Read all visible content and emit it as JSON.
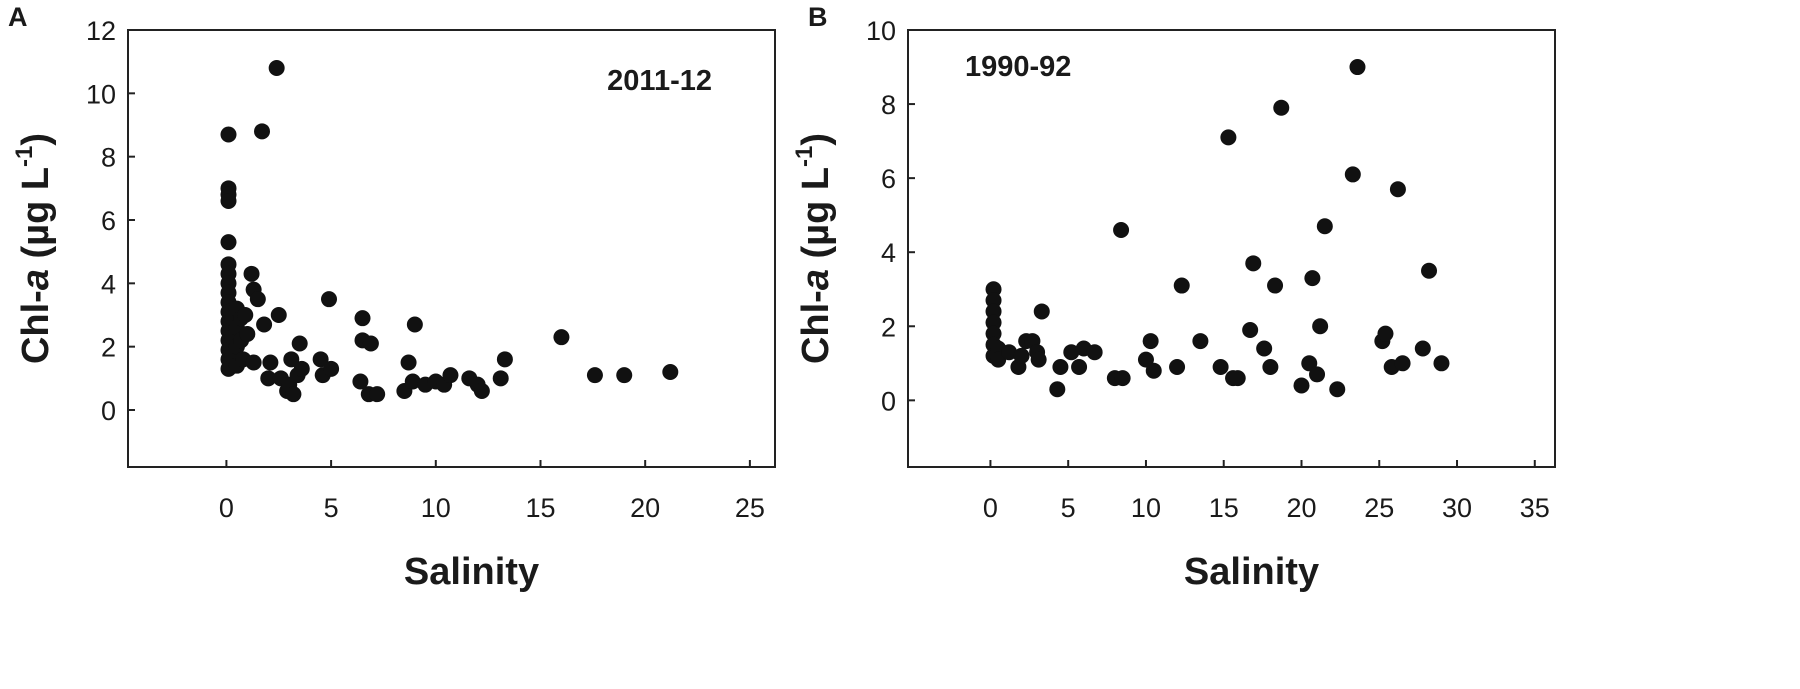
{
  "chart_data": [
    {
      "type": "scatter",
      "panel_label": "A",
      "annotation": "2011-12",
      "x_label": "Salinity",
      "y_label": {
        "prefix": "Chl-",
        "italic": "a",
        "unit": " (µg L",
        "exponent": "-1",
        "suffix": ")"
      },
      "color": "#111111",
      "xlim": [
        -4.7,
        26.2
      ],
      "xticks": [
        0,
        5,
        10,
        15,
        20,
        25
      ],
      "ylim": [
        -1.8,
        12
      ],
      "yticks": [
        0,
        2,
        4,
        6,
        8,
        10,
        12
      ],
      "x": [
        0.1,
        0.1,
        0.1,
        0.1,
        0.1,
        0.1,
        0.1,
        0.1,
        0.1,
        0.1,
        0.1,
        0.1,
        0.1,
        0.1,
        0.1,
        0.1,
        0.1,
        0.3,
        0.3,
        0.3,
        0.5,
        0.5,
        0.5,
        0.5,
        0.7,
        0.7,
        0.8,
        0.9,
        1.0,
        1.2,
        1.3,
        1.5,
        1.3,
        1.7,
        1.8,
        2.0,
        2.1,
        2.4,
        2.5,
        2.6,
        2.9,
        3.0,
        3.1,
        3.2,
        3.4,
        3.5,
        3.6,
        4.5,
        4.6,
        4.9,
        5.0,
        6.4,
        6.5,
        6.5,
        6.8,
        6.9,
        7.2,
        8.5,
        8.7,
        8.9,
        9.0,
        9.5,
        10.0,
        10.4,
        10.7,
        11.6,
        12.0,
        12.2,
        13.1,
        13.3,
        16.0,
        17.6,
        19.0,
        21.2
      ],
      "y": [
        8.7,
        7.0,
        6.8,
        6.6,
        5.3,
        4.6,
        4.3,
        4.0,
        3.7,
        3.4,
        3.1,
        2.8,
        2.5,
        2.2,
        1.9,
        1.6,
        1.3,
        2.9,
        2.3,
        1.7,
        3.2,
        2.6,
        2.0,
        1.4,
        2.9,
        2.2,
        1.6,
        3.0,
        2.4,
        4.3,
        3.8,
        3.5,
        1.5,
        8.8,
        2.7,
        1.0,
        1.5,
        10.8,
        3.0,
        1.0,
        0.6,
        0.8,
        1.6,
        0.5,
        1.1,
        2.1,
        1.3,
        1.6,
        1.1,
        3.5,
        1.3,
        0.9,
        2.9,
        2.2,
        0.5,
        2.1,
        0.5,
        0.6,
        1.5,
        0.9,
        2.7,
        0.8,
        0.9,
        0.8,
        1.1,
        1.0,
        0.8,
        0.6,
        1.0,
        1.6,
        2.3,
        1.1,
        1.1,
        1.2
      ]
    },
    {
      "type": "scatter",
      "panel_label": "B",
      "annotation": "1990-92",
      "x_label": "Salinity",
      "y_label": {
        "prefix": "Chl-",
        "italic": "a",
        "unit": " (µg L",
        "exponent": "-1",
        "suffix": ")"
      },
      "color": "#111111",
      "xlim": [
        -5.3,
        36.3
      ],
      "xticks": [
        0,
        5,
        10,
        15,
        20,
        25,
        30,
        35
      ],
      "ylim": [
        -1.8,
        10
      ],
      "yticks": [
        0,
        2,
        4,
        6,
        8,
        10
      ],
      "x": [
        0.2,
        0.2,
        0.2,
        0.2,
        0.2,
        0.2,
        0.2,
        0.5,
        0.5,
        1.2,
        1.8,
        2.0,
        2.3,
        2.7,
        3.0,
        3.1,
        3.3,
        4.3,
        4.5,
        5.2,
        5.7,
        6.0,
        6.7,
        8.0,
        8.4,
        8.5,
        10.0,
        10.3,
        10.5,
        12.0,
        12.3,
        13.5,
        14.8,
        15.3,
        15.6,
        15.9,
        16.7,
        16.9,
        17.6,
        18.0,
        18.3,
        18.7,
        20.0,
        20.5,
        20.7,
        21.0,
        21.2,
        21.5,
        22.3,
        23.3,
        23.6,
        25.2,
        25.4,
        25.8,
        26.2,
        26.5,
        27.8,
        28.2,
        29.0
      ],
      "y": [
        3.0,
        2.7,
        2.4,
        2.1,
        1.8,
        1.5,
        1.2,
        1.4,
        1.1,
        1.3,
        0.9,
        1.2,
        1.6,
        1.6,
        1.3,
        1.1,
        2.4,
        0.3,
        0.9,
        1.3,
        0.9,
        1.4,
        1.3,
        0.6,
        4.6,
        0.6,
        1.1,
        1.6,
        0.8,
        0.9,
        3.1,
        1.6,
        0.9,
        7.1,
        0.6,
        0.6,
        1.9,
        3.7,
        1.4,
        0.9,
        3.1,
        7.9,
        0.4,
        1.0,
        3.3,
        0.7,
        2.0,
        4.7,
        0.3,
        6.1,
        9.0,
        1.6,
        1.8,
        0.9,
        5.7,
        1.0,
        1.4,
        3.5,
        1.0
      ]
    }
  ]
}
